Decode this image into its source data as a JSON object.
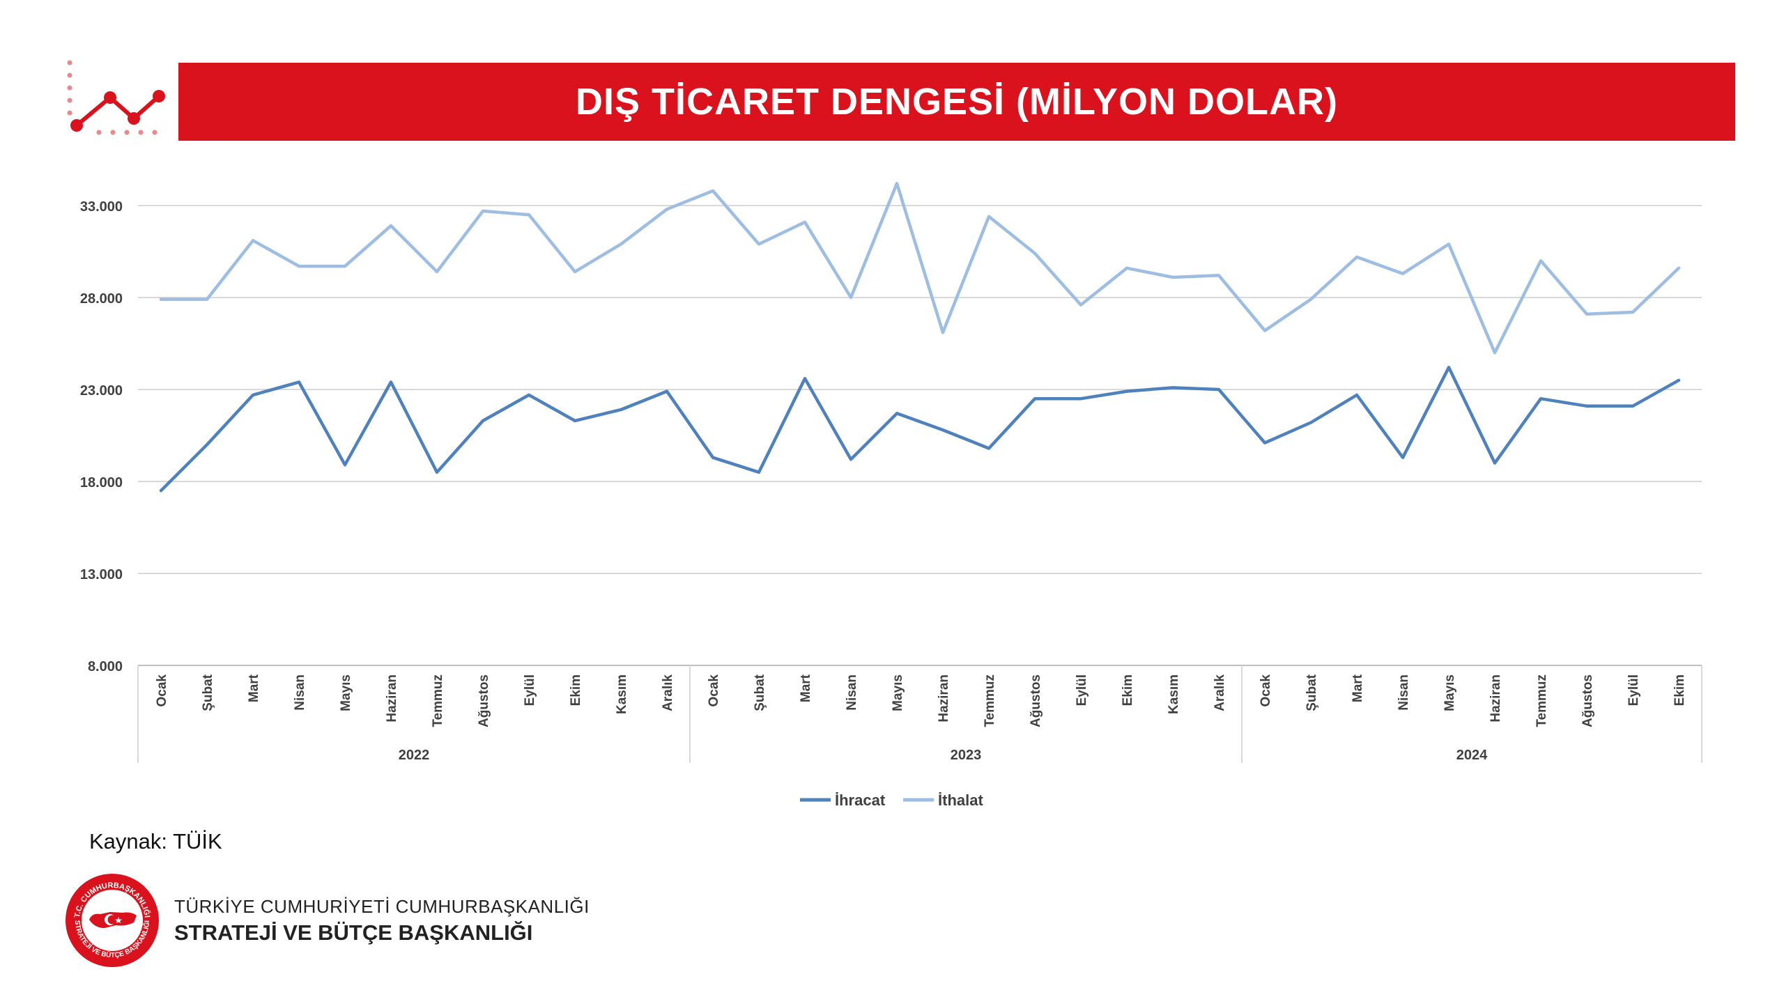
{
  "header": {
    "title": "DIŞ TİCARET DENGESİ (MİLYON DOLAR)"
  },
  "source": "Kaynak: TÜİK",
  "footer": {
    "org_line1": "TÜRKİYE CUMHURİYETİ CUMHURBAŞKANLIĞI",
    "org_line2": "STRATEJİ VE BÜTÇE BAŞKANLIĞI",
    "seal_top": "T.C. CUMHURBAŞKANLIĞI",
    "seal_bottom": "STRATEJİ VE BÜTÇE BAŞKANLIĞI"
  },
  "colors": {
    "brand_red": "#d9121d",
    "export": "#4f81bd",
    "import": "#9dbde2"
  },
  "chart_data": {
    "type": "line",
    "title": "",
    "xlabel": "",
    "ylabel": "",
    "ylim": [
      8000,
      33000
    ],
    "yticks": [
      "8.000",
      "13.000",
      "18.000",
      "23.000",
      "28.000",
      "33.000"
    ],
    "grid": true,
    "legend_position": "bottom",
    "groups": [
      {
        "label": "2022",
        "months": [
          "Ocak",
          "Şubat",
          "Mart",
          "Nisan",
          "Mayıs",
          "Haziran",
          "Temmuz",
          "Ağustos",
          "Eylül",
          "Ekim",
          "Kasım",
          "Aralık"
        ]
      },
      {
        "label": "2023",
        "months": [
          "Ocak",
          "Şubat",
          "Mart",
          "Nisan",
          "Mayıs",
          "Haziran",
          "Temmuz",
          "Ağustos",
          "Eylül",
          "Ekim",
          "Kasım",
          "Aralık"
        ]
      },
      {
        "label": "2024",
        "months": [
          "Ocak",
          "Şubat",
          "Mart",
          "Nisan",
          "Mayıs",
          "Haziran",
          "Temmuz",
          "Ağustos",
          "Eylül",
          "Ekim"
        ]
      }
    ],
    "series": [
      {
        "name": "İhracat",
        "values": [
          17500,
          20000,
          22700,
          23400,
          18900,
          23400,
          18500,
          21300,
          22700,
          21300,
          21900,
          22900,
          19300,
          18500,
          23600,
          19200,
          21700,
          20800,
          19800,
          22500,
          22500,
          22900,
          23100,
          23000,
          20100,
          21200,
          22700,
          19300,
          24200,
          19000,
          22500,
          22100,
          22100,
          23500
        ]
      },
      {
        "name": "İthalat",
        "values": [
          27900,
          27900,
          31100,
          29700,
          29700,
          31900,
          29400,
          32700,
          32500,
          29400,
          30900,
          32800,
          33800,
          30900,
          32100,
          28000,
          34200,
          26100,
          32400,
          30400,
          27600,
          29600,
          29100,
          29200,
          26200,
          27900,
          30200,
          29300,
          30900,
          25000,
          30000,
          27100,
          27200,
          29600
        ]
      }
    ]
  }
}
